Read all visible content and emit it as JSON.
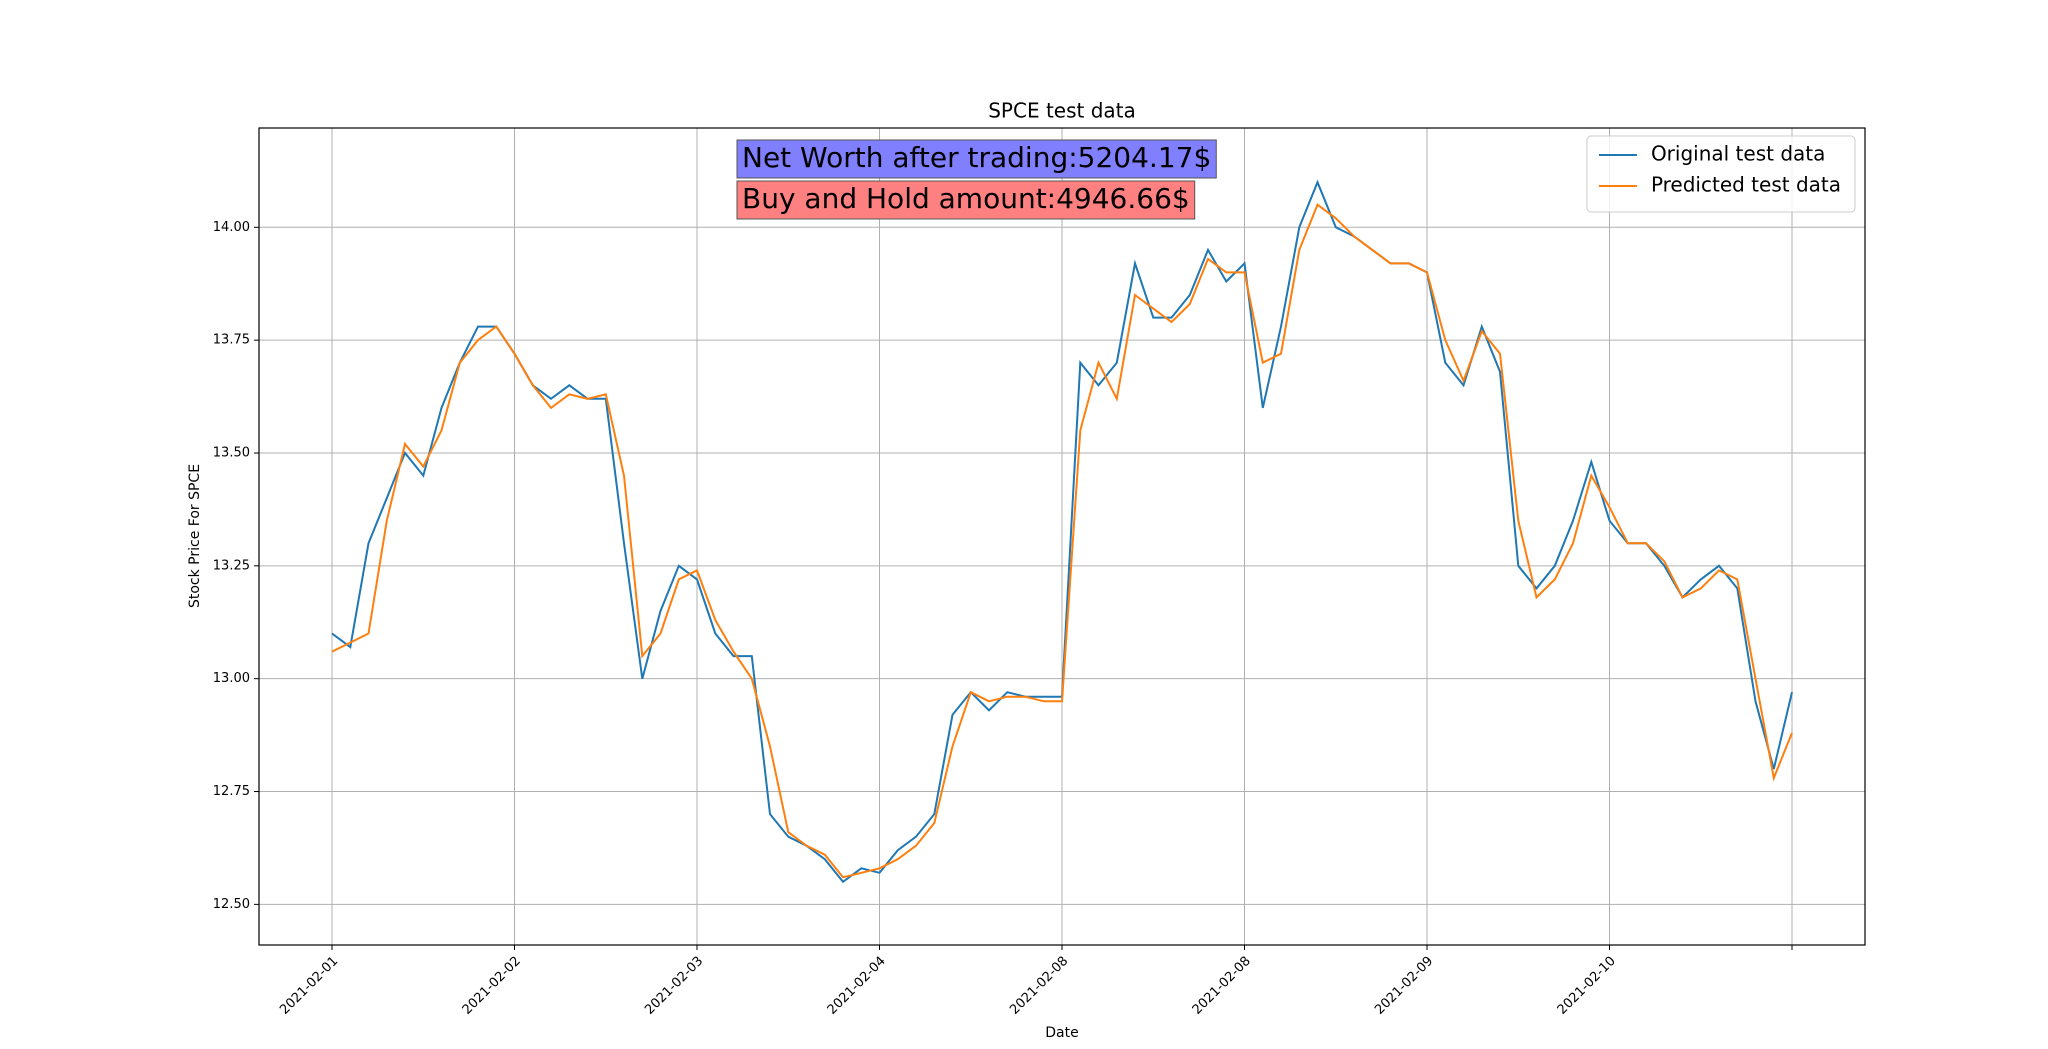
{
  "chart_data": {
    "type": "line",
    "title": "SPCE test data",
    "xlabel": "Date",
    "ylabel": "Stock Price For SPCE",
    "x": [
      0,
      10,
      20,
      30,
      40,
      50,
      60,
      70,
      80,
      90,
      100,
      110,
      120,
      130,
      140,
      150,
      160,
      170,
      180,
      190,
      200,
      210,
      220,
      230,
      240,
      250,
      260,
      270,
      280,
      290,
      300,
      310,
      320,
      330,
      340,
      350,
      360,
      370,
      380,
      390,
      400,
      410,
      420,
      430,
      440,
      450,
      460,
      470,
      480,
      490,
      500,
      510,
      520,
      530,
      540,
      550,
      560,
      570,
      580,
      590,
      600,
      610,
      620,
      630,
      640,
      650,
      660,
      670,
      680,
      690,
      700,
      710,
      720,
      730,
      740,
      750,
      760,
      770,
      780,
      790,
      800
    ],
    "series": [
      {
        "name": "Original test data",
        "color": "#1f77b4",
        "values": [
          13.1,
          13.07,
          13.3,
          13.4,
          13.5,
          13.45,
          13.6,
          13.7,
          13.78,
          13.78,
          13.72,
          13.65,
          13.62,
          13.65,
          13.62,
          13.62,
          13.3,
          13.0,
          13.15,
          13.25,
          13.22,
          13.1,
          13.05,
          13.05,
          12.7,
          12.65,
          12.63,
          12.6,
          12.55,
          12.58,
          12.57,
          12.62,
          12.65,
          12.7,
          12.92,
          12.97,
          12.93,
          12.97,
          12.96,
          12.96,
          12.96,
          13.7,
          13.65,
          13.7,
          13.92,
          13.8,
          13.8,
          13.85,
          13.95,
          13.88,
          13.92,
          13.6,
          13.78,
          14.0,
          14.1,
          14.0,
          13.98,
          13.95,
          13.92,
          13.92,
          13.9,
          13.7,
          13.65,
          13.78,
          13.68,
          13.25,
          13.2,
          13.25,
          13.35,
          13.48,
          13.35,
          13.3,
          13.3,
          13.25,
          13.18,
          13.22,
          13.25,
          13.2,
          12.95,
          12.8,
          12.97
        ]
      },
      {
        "name": "Predicted test data",
        "color": "#ff7f0e",
        "values": [
          13.06,
          13.08,
          13.1,
          13.35,
          13.52,
          13.47,
          13.55,
          13.7,
          13.75,
          13.78,
          13.72,
          13.65,
          13.6,
          13.63,
          13.62,
          13.63,
          13.45,
          13.05,
          13.1,
          13.22,
          13.24,
          13.13,
          13.06,
          13.0,
          12.85,
          12.66,
          12.63,
          12.61,
          12.56,
          12.57,
          12.58,
          12.6,
          12.63,
          12.68,
          12.85,
          12.97,
          12.95,
          12.96,
          12.96,
          12.95,
          12.95,
          13.55,
          13.7,
          13.62,
          13.85,
          13.82,
          13.79,
          13.83,
          13.93,
          13.9,
          13.9,
          13.7,
          13.72,
          13.95,
          14.05,
          14.02,
          13.98,
          13.95,
          13.92,
          13.92,
          13.9,
          13.75,
          13.66,
          13.77,
          13.72,
          13.35,
          13.18,
          13.22,
          13.3,
          13.45,
          13.38,
          13.3,
          13.3,
          13.26,
          13.18,
          13.2,
          13.24,
          13.22,
          13.0,
          12.78,
          12.88
        ]
      }
    ],
    "xlim": [
      -40,
      840
    ],
    "ylim": [
      12.41,
      14.22
    ],
    "xticks": [
      {
        "value": 0,
        "label": "2021-02-01"
      },
      {
        "value": 100,
        "label": "2021-02-02"
      },
      {
        "value": 200,
        "label": "2021-02-03"
      },
      {
        "value": 300,
        "label": "2021-02-04"
      },
      {
        "value": 400,
        "label": "2021-02-08"
      },
      {
        "value": 500,
        "label": "2021-02-08"
      },
      {
        "value": 600,
        "label": "2021-02-09"
      },
      {
        "value": 700,
        "label": "2021-02-10"
      },
      {
        "value": 800,
        "label": null
      }
    ],
    "yticks": [
      {
        "value": 12.5,
        "label": "12.50"
      },
      {
        "value": 12.75,
        "label": "12.75"
      },
      {
        "value": 13.0,
        "label": "13.00"
      },
      {
        "value": 13.25,
        "label": "13.25"
      },
      {
        "value": 13.5,
        "label": "13.50"
      },
      {
        "value": 13.75,
        "label": "13.75"
      },
      {
        "value": 14.0,
        "label": "14.00"
      }
    ],
    "grid": true,
    "legend": "upper right",
    "annotations": [
      {
        "text": "Net Worth after trading:5204.17$",
        "color": "#8080ff"
      },
      {
        "text": "Buy and Hold amount:4946.66$",
        "color": "#ff8080"
      }
    ]
  }
}
